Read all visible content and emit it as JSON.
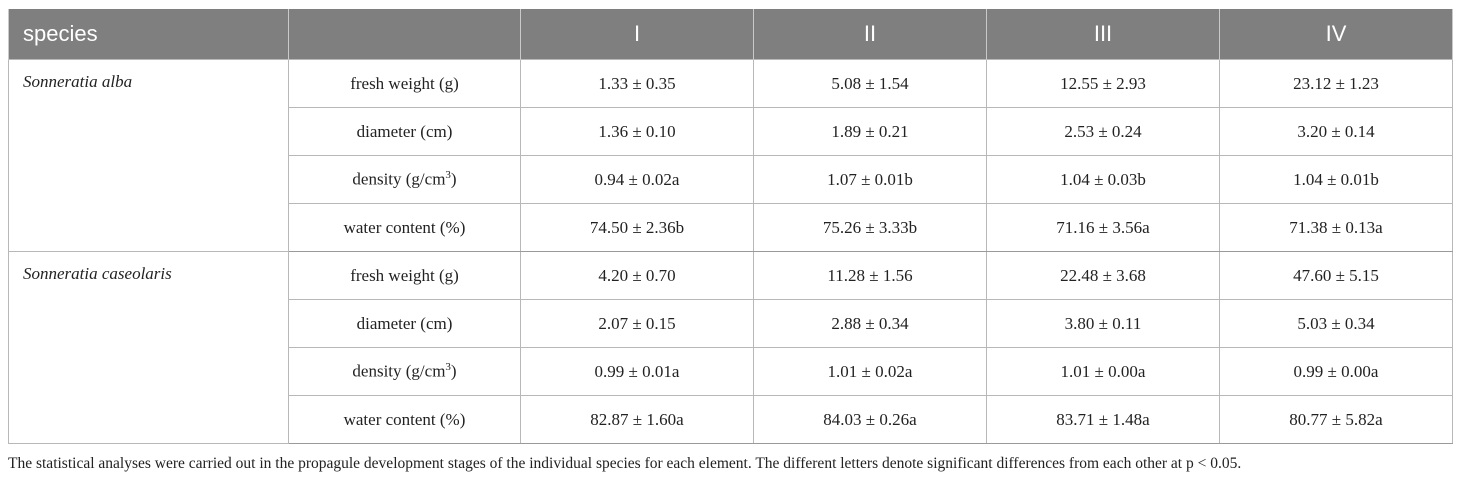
{
  "table": {
    "headers": [
      "species",
      "",
      "I",
      "II",
      "III",
      "IV"
    ],
    "groups": [
      {
        "species": "Sonneratia alba",
        "rows": [
          {
            "label": "fresh weight (g)",
            "values": [
              "1.33 ± 0.35",
              "5.08 ± 1.54",
              "12.55 ± 2.93",
              "23.12 ± 1.23"
            ]
          },
          {
            "label": "diameter (cm)",
            "values": [
              "1.36 ± 0.10",
              "1.89 ± 0.21",
              "2.53 ± 0.24",
              "3.20 ± 0.14"
            ]
          },
          {
            "label_pre": "density (g/cm",
            "label_sup": "3",
            "label_post": ")",
            "values": [
              "0.94 ± 0.02a",
              "1.07 ± 0.01b",
              "1.04 ± 0.03b",
              "1.04 ± 0.01b"
            ]
          },
          {
            "label": "water content (%)",
            "values": [
              "74.50 ± 2.36b",
              "75.26 ± 3.33b",
              "71.16 ± 3.56a",
              "71.38 ± 0.13a"
            ]
          }
        ]
      },
      {
        "species": "Sonneratia caseolaris",
        "rows": [
          {
            "label": "fresh weight (g)",
            "values": [
              "4.20 ± 0.70",
              "11.28 ± 1.56",
              "22.48 ± 3.68",
              "47.60 ± 5.15"
            ]
          },
          {
            "label": "diameter (cm)",
            "values": [
              "2.07 ± 0.15",
              "2.88 ± 0.34",
              "3.80 ± 0.11",
              "5.03 ± 0.34"
            ]
          },
          {
            "label_pre": "density (g/cm",
            "label_sup": "3",
            "label_post": ")",
            "values": [
              "0.99 ± 0.01a",
              "1.01 ± 0.02a",
              "1.01 ± 0.00a",
              "0.99 ± 0.00a"
            ]
          },
          {
            "label": "water content (%)",
            "values": [
              "82.87 ± 1.60a",
              "84.03 ± 0.26a",
              "83.71 ± 1.48a",
              "80.77 ± 5.82a"
            ]
          }
        ]
      }
    ]
  },
  "footnote": "The statistical analyses were carried out in the propagule development stages of the individual species for each element. The different letters denote significant differences from each other at p < 0.05.",
  "colors": {
    "header_bg": "#7f7f7f",
    "header_text": "#ffffff",
    "grid": "#b8b8b8"
  }
}
